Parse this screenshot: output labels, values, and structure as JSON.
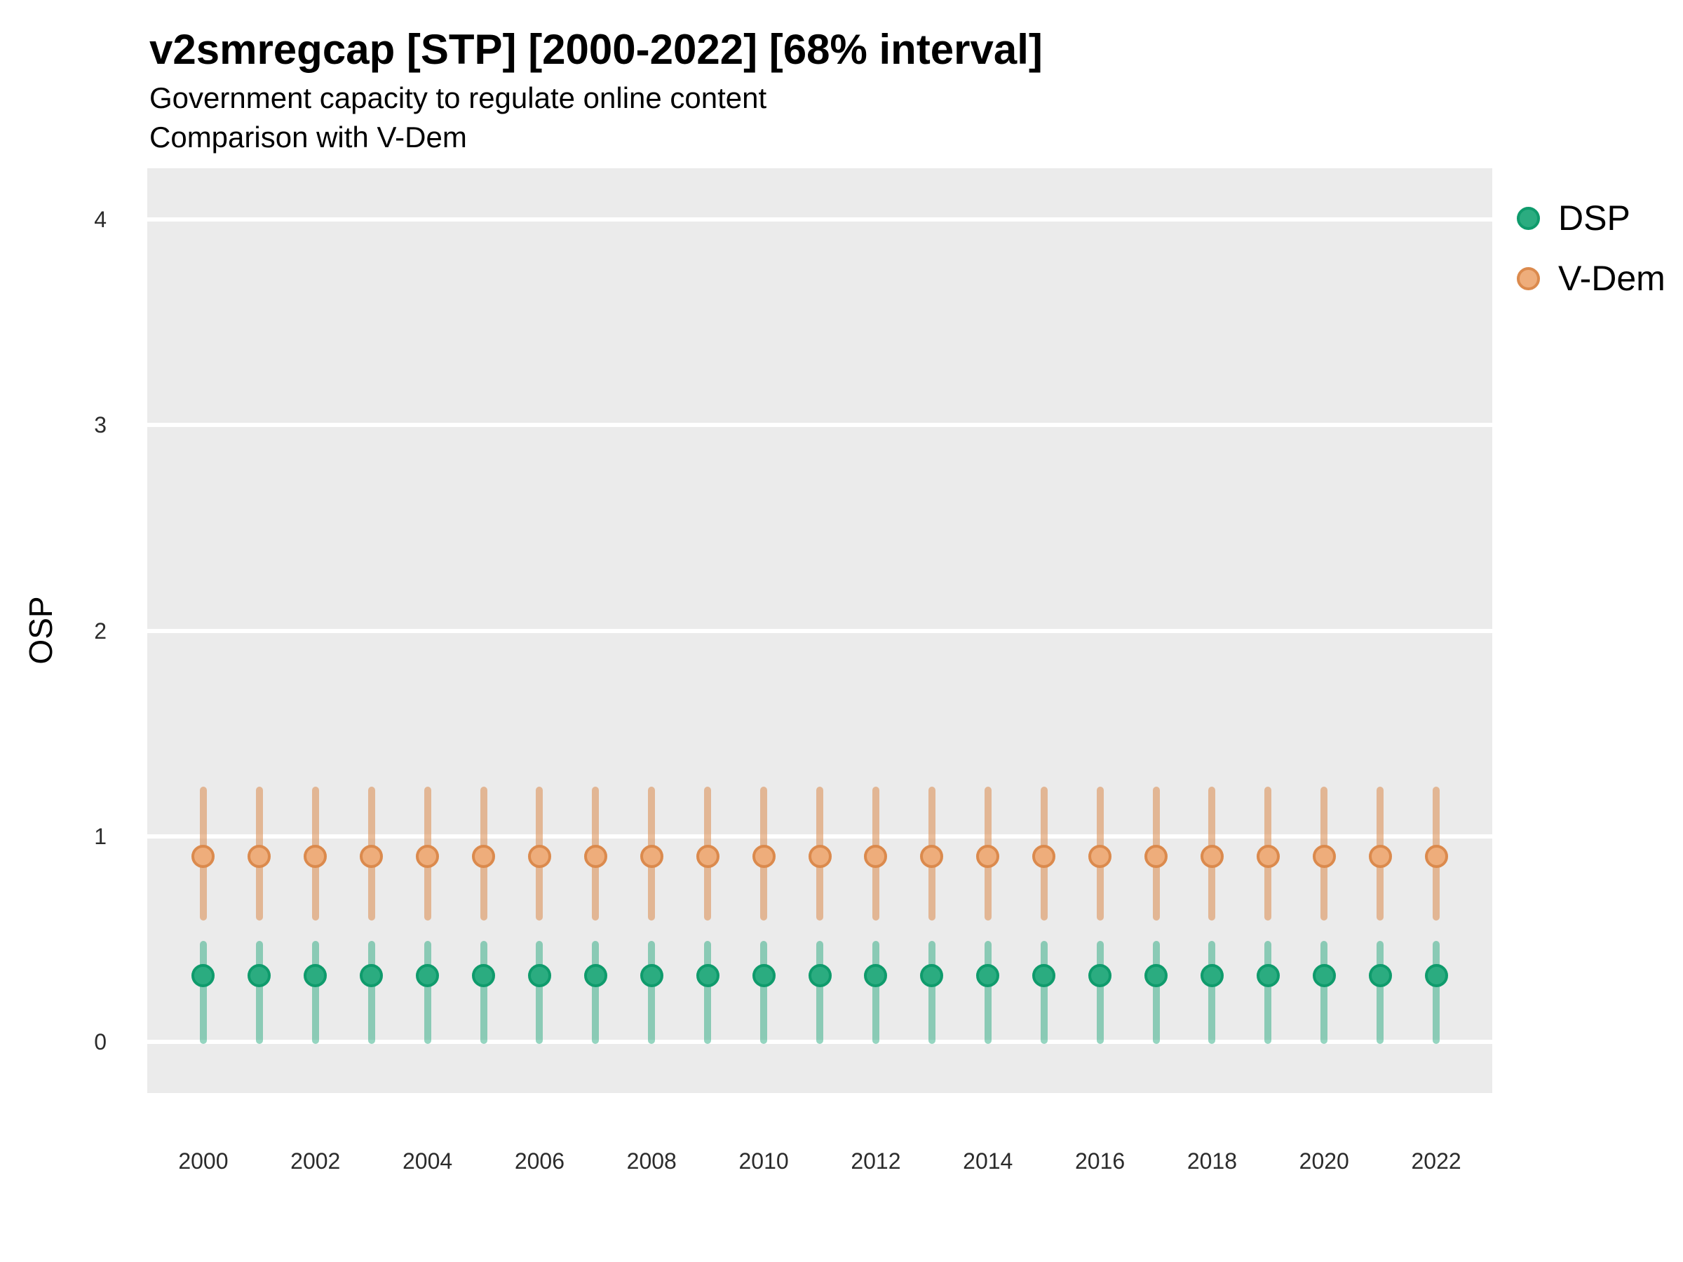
{
  "page": {
    "background_color": "#FFFFFF"
  },
  "chart_data": {
    "type": "pointrange",
    "title": "v2smregcap [STP] [2000-2022] [68% interval]",
    "subtitle_line1": "Government capacity to regulate online content",
    "subtitle_line2": "Comparison with V-Dem",
    "ylabel": "OSP",
    "xlabel": "",
    "interval_level": "68%",
    "years": [
      2000,
      2001,
      2002,
      2003,
      2004,
      2005,
      2006,
      2007,
      2008,
      2009,
      2010,
      2011,
      2012,
      2013,
      2014,
      2015,
      2016,
      2017,
      2018,
      2019,
      2020,
      2021,
      2022
    ],
    "x_tick_labels": [
      "2000",
      "2002",
      "2004",
      "2006",
      "2008",
      "2010",
      "2012",
      "2014",
      "2016",
      "2018",
      "2020",
      "2022"
    ],
    "x_ticks": [
      2000,
      2002,
      2004,
      2006,
      2008,
      2010,
      2012,
      2014,
      2016,
      2018,
      2020,
      2022
    ],
    "y_ticks": [
      0,
      1,
      2,
      3,
      4
    ],
    "y_tick_labels": [
      "0",
      "1",
      "2",
      "3",
      "4"
    ],
    "xlim": [
      1999,
      2023
    ],
    "ylim": [
      -0.25,
      4.25
    ],
    "grid": "major-horizontal-only",
    "panel_background": "#EBEBEB",
    "grid_color": "#FFFFFF",
    "legend_position": "top-right",
    "series": [
      {
        "name": "DSP",
        "point_fill": "#2BAC80",
        "point_stroke": "#0F9B6C",
        "line_color": "#13A173",
        "estimates": [
          0.32,
          0.32,
          0.32,
          0.32,
          0.32,
          0.32,
          0.32,
          0.32,
          0.32,
          0.32,
          0.32,
          0.32,
          0.32,
          0.32,
          0.32,
          0.32,
          0.32,
          0.32,
          0.32,
          0.32,
          0.32,
          0.32,
          0.32
        ],
        "lower": [
          -0.01,
          -0.01,
          -0.01,
          -0.01,
          -0.01,
          -0.01,
          -0.01,
          -0.01,
          -0.01,
          -0.01,
          -0.01,
          -0.01,
          -0.01,
          -0.01,
          -0.01,
          -0.01,
          -0.01,
          -0.01,
          -0.01,
          -0.01,
          -0.01,
          -0.01,
          -0.01
        ],
        "upper": [
          0.49,
          0.49,
          0.49,
          0.49,
          0.49,
          0.49,
          0.49,
          0.49,
          0.49,
          0.49,
          0.49,
          0.49,
          0.49,
          0.49,
          0.49,
          0.49,
          0.49,
          0.49,
          0.49,
          0.49,
          0.49,
          0.49,
          0.49
        ]
      },
      {
        "name": "V-Dem",
        "point_fill": "#EEAD7B",
        "point_stroke": "#DB8A4D",
        "line_color": "#DB8A4D",
        "estimates": [
          0.9,
          0.9,
          0.9,
          0.9,
          0.9,
          0.9,
          0.9,
          0.9,
          0.9,
          0.9,
          0.9,
          0.9,
          0.9,
          0.9,
          0.9,
          0.9,
          0.9,
          0.9,
          0.9,
          0.9,
          0.9,
          0.9,
          0.9
        ],
        "lower": [
          0.59,
          0.59,
          0.59,
          0.59,
          0.59,
          0.59,
          0.59,
          0.59,
          0.59,
          0.59,
          0.59,
          0.59,
          0.59,
          0.59,
          0.59,
          0.59,
          0.59,
          0.59,
          0.59,
          0.59,
          0.59,
          0.59,
          0.59
        ],
        "upper": [
          1.24,
          1.24,
          1.24,
          1.24,
          1.24,
          1.24,
          1.24,
          1.24,
          1.24,
          1.24,
          1.24,
          1.24,
          1.24,
          1.24,
          1.24,
          1.24,
          1.24,
          1.24,
          1.24,
          1.24,
          1.24,
          1.24,
          1.24
        ]
      }
    ]
  }
}
